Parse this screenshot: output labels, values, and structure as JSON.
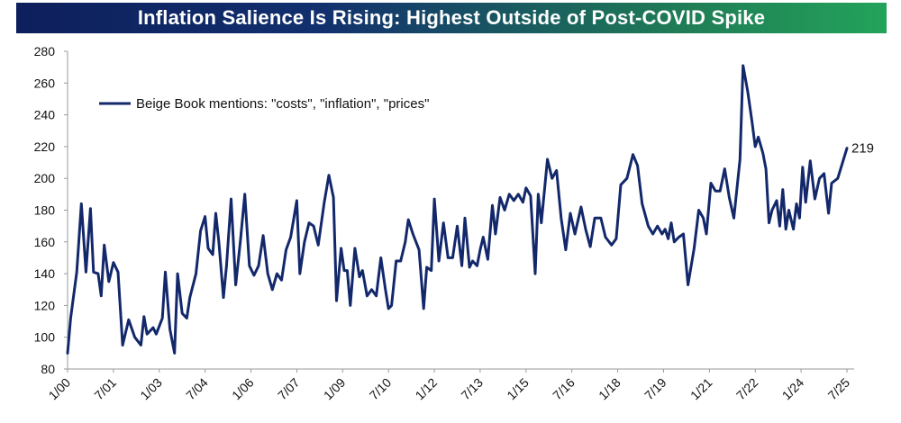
{
  "title": "Inflation Salience Is Rising: Highest Outside of Post-COVID Spike",
  "chart_data": {
    "type": "line",
    "title": "Inflation Salience Is Rising: Highest Outside of Post-COVID Spike",
    "xlabel": "",
    "ylabel": "",
    "ylim": [
      80,
      280
    ],
    "yticks": [
      80,
      100,
      120,
      140,
      160,
      180,
      200,
      220,
      240,
      260,
      280
    ],
    "xlim": [
      2000.0,
      2025.5
    ],
    "xtick_labels": [
      {
        "label": "1/00",
        "t": 2000.0
      },
      {
        "label": "7/01",
        "t": 2001.5
      },
      {
        "label": "1/03",
        "t": 2003.0
      },
      {
        "label": "7/04",
        "t": 2004.5
      },
      {
        "label": "1/06",
        "t": 2006.0
      },
      {
        "label": "7/07",
        "t": 2007.5
      },
      {
        "label": "1/09",
        "t": 2009.0
      },
      {
        "label": "7/10",
        "t": 2010.5
      },
      {
        "label": "1/12",
        "t": 2012.0
      },
      {
        "label": "7/13",
        "t": 2013.5
      },
      {
        "label": "1/15",
        "t": 2015.0
      },
      {
        "label": "7/16",
        "t": 2016.5
      },
      {
        "label": "1/18",
        "t": 2018.0
      },
      {
        "label": "7/19",
        "t": 2019.5
      },
      {
        "label": "1/21",
        "t": 2021.0
      },
      {
        "label": "7/22",
        "t": 2022.5
      },
      {
        "label": "1/24",
        "t": 2024.0
      },
      {
        "label": "7/25",
        "t": 2025.5
      }
    ],
    "grid": false,
    "legend_position": "top-left",
    "series": [
      {
        "name": "Beige Book mentions: \"costs\", \"inflation\", \"prices\"",
        "color": "#13286b",
        "end_label": "219",
        "points": [
          [
            2000.0,
            90
          ],
          [
            2000.1,
            112
          ],
          [
            2000.3,
            141
          ],
          [
            2000.45,
            184
          ],
          [
            2000.6,
            141
          ],
          [
            2000.75,
            181
          ],
          [
            2000.85,
            141
          ],
          [
            2001.0,
            140
          ],
          [
            2001.1,
            126
          ],
          [
            2001.2,
            158
          ],
          [
            2001.35,
            135
          ],
          [
            2001.5,
            147
          ],
          [
            2001.65,
            141
          ],
          [
            2001.8,
            95
          ],
          [
            2002.0,
            111
          ],
          [
            2002.2,
            100
          ],
          [
            2002.4,
            95
          ],
          [
            2002.5,
            113
          ],
          [
            2002.6,
            102
          ],
          [
            2002.8,
            106
          ],
          [
            2002.9,
            102
          ],
          [
            2003.1,
            112
          ],
          [
            2003.2,
            141
          ],
          [
            2003.35,
            105
          ],
          [
            2003.5,
            90
          ],
          [
            2003.6,
            140
          ],
          [
            2003.75,
            115
          ],
          [
            2003.9,
            112
          ],
          [
            2004.0,
            125
          ],
          [
            2004.2,
            140
          ],
          [
            2004.35,
            167
          ],
          [
            2004.5,
            176
          ],
          [
            2004.6,
            156
          ],
          [
            2004.75,
            152
          ],
          [
            2004.85,
            178
          ],
          [
            2004.95,
            160
          ],
          [
            2005.1,
            125
          ],
          [
            2005.2,
            145
          ],
          [
            2005.35,
            187
          ],
          [
            2005.5,
            133
          ],
          [
            2005.65,
            160
          ],
          [
            2005.8,
            190
          ],
          [
            2005.95,
            145
          ],
          [
            2006.1,
            139
          ],
          [
            2006.25,
            145
          ],
          [
            2006.4,
            164
          ],
          [
            2006.55,
            140
          ],
          [
            2006.7,
            130
          ],
          [
            2006.85,
            140
          ],
          [
            2007.0,
            136
          ],
          [
            2007.15,
            155
          ],
          [
            2007.3,
            163
          ],
          [
            2007.5,
            186
          ],
          [
            2007.6,
            140
          ],
          [
            2007.75,
            160
          ],
          [
            2007.9,
            172
          ],
          [
            2008.05,
            170
          ],
          [
            2008.2,
            158
          ],
          [
            2008.4,
            185
          ],
          [
            2008.55,
            202
          ],
          [
            2008.7,
            188
          ],
          [
            2008.8,
            123
          ],
          [
            2008.95,
            156
          ],
          [
            2009.05,
            142
          ],
          [
            2009.15,
            142
          ],
          [
            2009.25,
            120
          ],
          [
            2009.4,
            156
          ],
          [
            2009.55,
            138
          ],
          [
            2009.65,
            142
          ],
          [
            2009.8,
            126
          ],
          [
            2009.95,
            130
          ],
          [
            2010.1,
            126
          ],
          [
            2010.25,
            150
          ],
          [
            2010.4,
            130
          ],
          [
            2010.5,
            118
          ],
          [
            2010.6,
            120
          ],
          [
            2010.75,
            148
          ],
          [
            2010.9,
            148
          ],
          [
            2011.05,
            160
          ],
          [
            2011.15,
            174
          ],
          [
            2011.3,
            165
          ],
          [
            2011.5,
            155
          ],
          [
            2011.65,
            118
          ],
          [
            2011.75,
            144
          ],
          [
            2011.9,
            142
          ],
          [
            2012.0,
            187
          ],
          [
            2012.15,
            148
          ],
          [
            2012.3,
            172
          ],
          [
            2012.45,
            150
          ],
          [
            2012.6,
            150
          ],
          [
            2012.75,
            170
          ],
          [
            2012.9,
            145
          ],
          [
            2013.0,
            175
          ],
          [
            2013.15,
            144
          ],
          [
            2013.25,
            148
          ],
          [
            2013.4,
            145
          ],
          [
            2013.5,
            155
          ],
          [
            2013.6,
            163
          ],
          [
            2013.75,
            149
          ],
          [
            2013.9,
            183
          ],
          [
            2014.0,
            165
          ],
          [
            2014.15,
            188
          ],
          [
            2014.3,
            180
          ],
          [
            2014.45,
            190
          ],
          [
            2014.6,
            186
          ],
          [
            2014.75,
            190
          ],
          [
            2014.9,
            185
          ],
          [
            2015.0,
            194
          ],
          [
            2015.15,
            189
          ],
          [
            2015.3,
            140
          ],
          [
            2015.4,
            190
          ],
          [
            2015.5,
            172
          ],
          [
            2015.7,
            212
          ],
          [
            2015.85,
            200
          ],
          [
            2016.0,
            205
          ],
          [
            2016.15,
            175
          ],
          [
            2016.3,
            155
          ],
          [
            2016.45,
            178
          ],
          [
            2016.6,
            165
          ],
          [
            2016.8,
            182
          ],
          [
            2016.95,
            168
          ],
          [
            2017.1,
            157
          ],
          [
            2017.25,
            175
          ],
          [
            2017.45,
            175
          ],
          [
            2017.6,
            163
          ],
          [
            2017.8,
            158
          ],
          [
            2017.95,
            162
          ],
          [
            2018.1,
            196
          ],
          [
            2018.3,
            200
          ],
          [
            2018.5,
            215
          ],
          [
            2018.65,
            208
          ],
          [
            2018.8,
            184
          ],
          [
            2019.0,
            170
          ],
          [
            2019.15,
            165
          ],
          [
            2019.3,
            170
          ],
          [
            2019.45,
            165
          ],
          [
            2019.55,
            168
          ],
          [
            2019.65,
            162
          ],
          [
            2019.75,
            172
          ],
          [
            2019.85,
            160
          ],
          [
            2020.0,
            163
          ],
          [
            2020.15,
            165
          ],
          [
            2020.3,
            133
          ],
          [
            2020.5,
            156
          ],
          [
            2020.65,
            180
          ],
          [
            2020.8,
            175
          ],
          [
            2020.9,
            165
          ],
          [
            2021.05,
            197
          ],
          [
            2021.2,
            192
          ],
          [
            2021.35,
            192
          ],
          [
            2021.5,
            206
          ],
          [
            2021.65,
            188
          ],
          [
            2021.8,
            175
          ],
          [
            2022.0,
            212
          ],
          [
            2022.1,
            271
          ],
          [
            2022.25,
            255
          ],
          [
            2022.4,
            235
          ],
          [
            2022.5,
            220
          ],
          [
            2022.6,
            226
          ],
          [
            2022.75,
            216
          ],
          [
            2022.85,
            206
          ],
          [
            2022.95,
            172
          ],
          [
            2023.05,
            180
          ],
          [
            2023.2,
            186
          ],
          [
            2023.3,
            170
          ],
          [
            2023.4,
            193
          ],
          [
            2023.5,
            168
          ],
          [
            2023.6,
            180
          ],
          [
            2023.75,
            168
          ],
          [
            2023.85,
            184
          ],
          [
            2023.95,
            175
          ],
          [
            2024.05,
            207
          ],
          [
            2024.15,
            185
          ],
          [
            2024.3,
            211
          ],
          [
            2024.45,
            187
          ],
          [
            2024.6,
            200
          ],
          [
            2024.75,
            203
          ],
          [
            2024.9,
            178
          ],
          [
            2025.0,
            197
          ],
          [
            2025.2,
            200
          ],
          [
            2025.5,
            219
          ]
        ]
      }
    ]
  }
}
